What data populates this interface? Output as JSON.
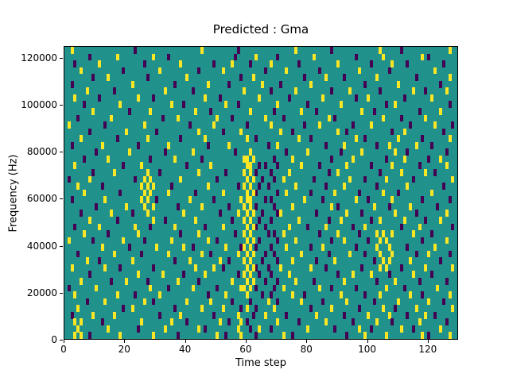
{
  "chart_data": {
    "type": "heatmap",
    "title": "Predicted : Gma",
    "xlabel": "Time step",
    "ylabel": "Frequency (Hz)",
    "xlim": [
      0,
      130
    ],
    "ylim": [
      0,
      125000
    ],
    "x_ticks": [
      0,
      20,
      40,
      60,
      80,
      100,
      120
    ],
    "y_ticks": [
      0,
      20000,
      40000,
      60000,
      80000,
      100000,
      120000
    ],
    "n_cols": 130,
    "n_rows": 43,
    "colors": {
      "low": "#440154",
      "mid": "#21918c",
      "high": "#fde725"
    },
    "rows_top_to_bottom": [
      {
        "p": [
          23,
          57,
          88,
          111
        ],
        "y": [
          2,
          45,
          76,
          104,
          127
        ]
      },
      {
        "p": [
          8,
          34,
          56,
          70,
          96,
          120
        ],
        "y": [
          17,
          29,
          63,
          82,
          105,
          118
        ]
      },
      {
        "p": [
          3,
          26,
          49,
          61,
          77,
          101,
          113,
          125
        ],
        "y": [
          11,
          38,
          55,
          68,
          90,
          108
        ]
      },
      {
        "p": [
          19,
          44,
          66,
          84,
          107
        ],
        "y": [
          5,
          31,
          52,
          73,
          97,
          122
        ]
      },
      {
        "p": [
          9,
          27,
          58,
          79,
          92,
          116
        ],
        "y": [
          14,
          40,
          62,
          86,
          103,
          127
        ]
      },
      {
        "p": [
          2,
          36,
          54,
          71,
          99,
          124
        ],
        "y": [
          22,
          47,
          65,
          81,
          110
        ]
      },
      {
        "p": [
          16,
          42,
          68,
          88,
          104,
          119
        ],
        "y": [
          7,
          33,
          59,
          76,
          94,
          115,
          126
        ]
      },
      {
        "p": [
          11,
          29,
          51,
          74,
          96,
          112
        ],
        "y": [
          3,
          24,
          46,
          64,
          85,
          100,
          121
        ]
      },
      {
        "p": [
          6,
          39,
          57,
          80,
          106,
          127
        ],
        "y": [
          18,
          35,
          53,
          70,
          91,
          109
        ]
      },
      {
        "p": [
          21,
          48,
          69,
          83,
          102,
          117
        ],
        "y": [
          9,
          28,
          43,
          61,
          78,
          98,
          124
        ]
      },
      {
        "p": [
          4,
          32,
          55,
          72,
          89,
          111
        ],
        "y": [
          15,
          37,
          50,
          66,
          87,
          105,
          119
        ]
      },
      {
        "p": [
          13,
          41,
          60,
          79,
          95,
          114,
          128
        ],
        "y": [
          1,
          26,
          49,
          68,
          84,
          101,
          122
        ]
      },
      {
        "p": [
          8,
          30,
          52,
          75,
          93,
          108,
          125
        ],
        "y": [
          20,
          44,
          58,
          71,
          90,
          112
        ]
      },
      {
        "p": [
          17,
          38,
          63,
          81,
          99,
          118
        ],
        "y": [
          5,
          27,
          46,
          60,
          77,
          96,
          110,
          127
        ]
      },
      {
        "p": [
          2,
          24,
          47,
          67,
          86,
          103,
          121
        ],
        "y": [
          12,
          34,
          54,
          70,
          92,
          107,
          116
        ]
      },
      {
        "p": [
          10,
          33,
          56,
          73,
          91,
          113,
          126
        ],
        "y": [
          21,
          42,
          61,
          80,
          98,
          109
        ]
      },
      {
        "p": [
          6,
          28,
          45,
          69,
          88,
          106,
          120
        ],
        "y": [
          14,
          36,
          59,
          60,
          62,
          75,
          95,
          112,
          124
        ]
      },
      {
        "p": [
          19,
          40,
          64,
          66,
          70,
          84,
          101,
          117
        ],
        "y": [
          3,
          25,
          48,
          60,
          61,
          78,
          93,
          108,
          126
        ]
      },
      {
        "p": [
          9,
          31,
          53,
          63,
          68,
          87,
          104,
          122
        ],
        "y": [
          16,
          27,
          44,
          59,
          61,
          74,
          90,
          111,
          119
        ]
      },
      {
        "p": [
          1,
          23,
          50,
          65,
          69,
          82,
          99,
          115
        ],
        "y": [
          8,
          26,
          28,
          38,
          60,
          62,
          72,
          94,
          106,
          128
        ]
      },
      {
        "p": [
          12,
          35,
          57,
          64,
          67,
          86,
          103,
          125
        ],
        "y": [
          4,
          25,
          27,
          29,
          47,
          59,
          61,
          76,
          92,
          113
        ]
      },
      {
        "p": [
          18,
          43,
          63,
          70,
          81,
          97,
          110
        ],
        "y": [
          6,
          26,
          28,
          34,
          52,
          60,
          62,
          73,
          89,
          105,
          121
        ]
      },
      {
        "p": [
          2,
          30,
          49,
          66,
          68,
          85,
          100,
          118,
          127
        ],
        "y": [
          13,
          25,
          27,
          41,
          58,
          60,
          61,
          79,
          96,
          108
        ]
      },
      {
        "p": [
          10,
          37,
          54,
          63,
          69,
          90,
          107,
          123
        ],
        "y": [
          20,
          26,
          29,
          45,
          59,
          61,
          75,
          88,
          102,
          114
        ]
      },
      {
        "p": [
          5,
          22,
          51,
          65,
          70,
          83,
          98,
          116
        ],
        "y": [
          15,
          27,
          39,
          57,
          60,
          62,
          71,
          93,
          109,
          126
        ]
      },
      {
        "p": [
          17,
          33,
          55,
          64,
          68,
          87,
          101,
          119
        ],
        "y": [
          8,
          29,
          43,
          59,
          61,
          77,
          91,
          104,
          112,
          124
        ]
      },
      {
        "p": [
          3,
          28,
          46,
          63,
          66,
          80,
          95,
          111,
          128
        ],
        "y": [
          11,
          23,
          36,
          52,
          60,
          62,
          74,
          86,
          99,
          117
        ]
      },
      {
        "p": [
          14,
          38,
          56,
          67,
          69,
          84,
          97,
          121
        ],
        "y": [
          6,
          24,
          44,
          59,
          61,
          72,
          90,
          103,
          105,
          108,
          115
        ]
      },
      {
        "p": [
          9,
          26,
          50,
          64,
          70,
          88,
          100,
          118
        ],
        "y": [
          1,
          19,
          35,
          47,
          60,
          62,
          76,
          92,
          104,
          106,
          126
        ]
      },
      {
        "p": [
          21,
          42,
          58,
          63,
          68,
          81,
          96,
          113
        ],
        "y": [
          12,
          30,
          39,
          53,
          59,
          61,
          73,
          85,
          103,
          107,
          122
        ]
      },
      {
        "p": [
          4,
          25,
          48,
          66,
          69,
          87,
          99,
          116,
          127
        ],
        "y": [
          16,
          34,
          45,
          57,
          60,
          62,
          78,
          94,
          104,
          108,
          120
        ]
      },
      {
        "p": [
          11,
          36,
          54,
          65,
          70,
          83,
          102,
          124
        ],
        "y": [
          7,
          22,
          41,
          51,
          59,
          61,
          75,
          89,
          105,
          107,
          114
        ]
      },
      {
        "p": [
          18,
          29,
          52,
          63,
          67,
          86,
          98,
          111
        ],
        "y": [
          2,
          13,
          43,
          49,
          60,
          62,
          71,
          81,
          104,
          106,
          119,
          128
        ]
      },
      {
        "p": [
          8,
          39,
          57,
          64,
          68,
          90,
          107,
          121
        ],
        "y": [
          24,
          32,
          46,
          59,
          61,
          74,
          95,
          101,
          115
        ]
      },
      {
        "p": [
          15,
          27,
          44,
          66,
          70,
          82,
          103,
          117,
          126
        ],
        "y": [
          5,
          20,
          37,
          55,
          60,
          62,
          76,
          92,
          109
        ]
      },
      {
        "p": [
          1,
          34,
          50,
          63,
          69,
          88,
          96,
          112
        ],
        "y": [
          10,
          28,
          42,
          58,
          59,
          61,
          72,
          84,
          106,
          123
        ]
      },
      {
        "p": [
          23,
          47,
          65,
          68,
          79,
          99,
          118
        ],
        "y": [
          3,
          17,
          31,
          53,
          60,
          75,
          91,
          104,
          114,
          127
        ]
      },
      {
        "p": [
          7,
          29,
          55,
          61,
          70,
          85,
          102,
          125
        ],
        "y": [
          13,
          26,
          40,
          48,
          67,
          78,
          93,
          110,
          120
        ]
      },
      {
        "p": [
          19,
          36,
          58,
          63,
          81,
          97,
          109
        ],
        "y": [
          4,
          22,
          45,
          52,
          60,
          69,
          88,
          105,
          116,
          128
        ]
      },
      {
        "p": [
          2,
          31,
          49,
          62,
          73,
          92,
          113,
          122
        ],
        "y": [
          9,
          16,
          38,
          57,
          66,
          83,
          100,
          107,
          119
        ]
      },
      {
        "p": [
          12,
          40,
          54,
          60,
          77,
          95,
          108,
          126
        ],
        "y": [
          3,
          5,
          25,
          35,
          51,
          58,
          70,
          86,
          103,
          117
        ]
      },
      {
        "p": [
          24,
          46,
          61,
          68,
          89,
          101,
          115
        ],
        "y": [
          4,
          14,
          33,
          44,
          57,
          64,
          80,
          97,
          111,
          124
        ]
      },
      {
        "p": [
          8,
          37,
          53,
          63,
          75,
          93,
          120
        ],
        "y": [
          3,
          5,
          18,
          29,
          50,
          58,
          72,
          99,
          106,
          118,
          127
        ]
      }
    ]
  }
}
